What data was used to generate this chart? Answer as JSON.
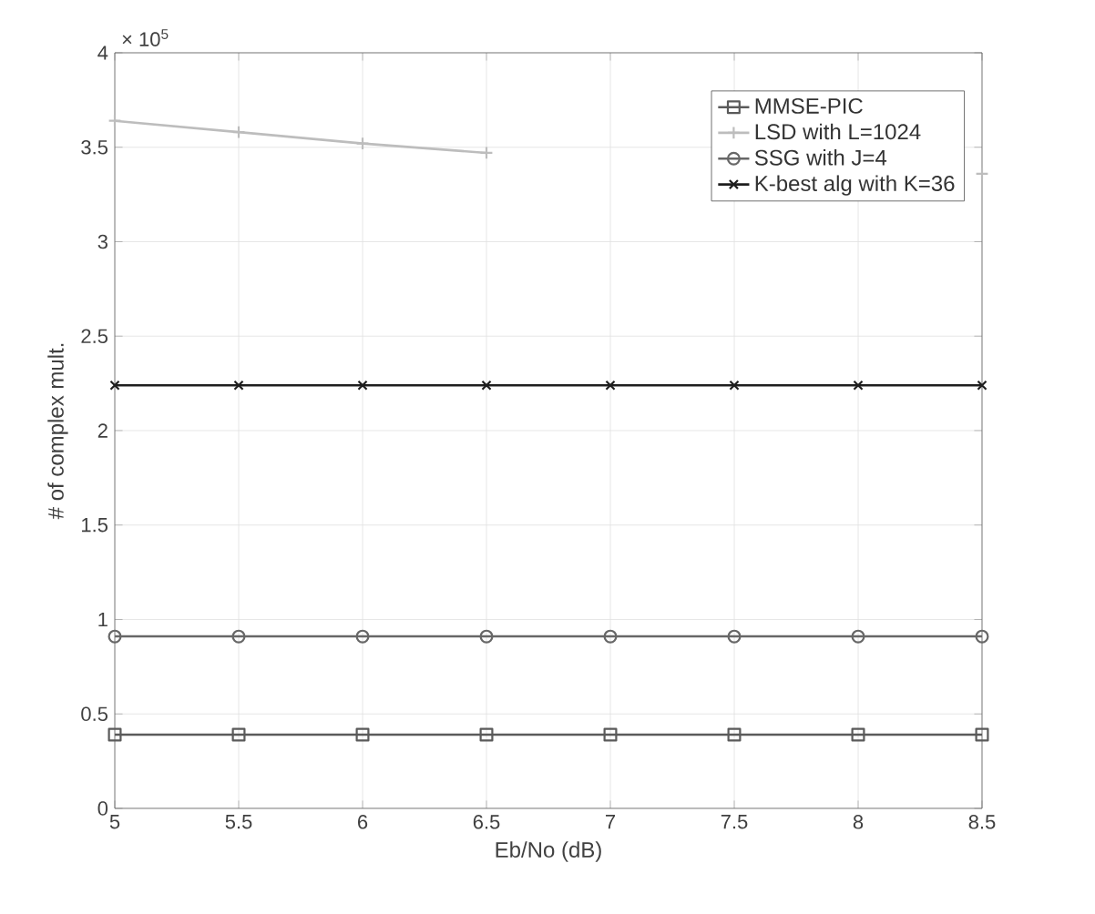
{
  "chart_data": {
    "type": "line",
    "xlabel": "Eb/No (dB)",
    "ylabel": "# of complex mult.",
    "annotations": [
      "× 10$^{5}$"
    ],
    "x": [
      5,
      5.5,
      6,
      6.5,
      7,
      7.5,
      8,
      8.5
    ],
    "series": [
      {
        "name": "MMSE-PIC",
        "color": "#5a5a5a",
        "marker": "square",
        "values": [
          0.39,
          0.39,
          0.39,
          0.39,
          0.39,
          0.39,
          0.39,
          0.39
        ]
      },
      {
        "name": "LSD with L=1024",
        "color": "#bdbdbd",
        "marker": "cross",
        "values": [
          3.64,
          3.58,
          3.52,
          3.47,
          null,
          null,
          null,
          3.36
        ]
      },
      {
        "name": "SSG with J=4",
        "color": "#676767",
        "marker": "circle",
        "values": [
          0.91,
          0.91,
          0.91,
          0.91,
          0.91,
          0.91,
          0.91,
          0.91
        ]
      },
      {
        "name": "K-best alg with K=36",
        "color": "#1e1e1e",
        "marker": "x",
        "values": [
          2.24,
          2.24,
          2.24,
          2.24,
          2.24,
          2.24,
          2.24,
          2.24
        ]
      }
    ],
    "xlim": [
      5,
      8.5
    ],
    "ylim": [
      0,
      4
    ],
    "xticks": [
      5,
      5.5,
      6,
      6.5,
      7,
      7.5,
      8,
      8.5
    ],
    "yticks": [
      0,
      0.5,
      1,
      1.5,
      2,
      2.5,
      3,
      3.5,
      4
    ],
    "grid": true,
    "legend": "top right",
    "line_style": "solid"
  }
}
